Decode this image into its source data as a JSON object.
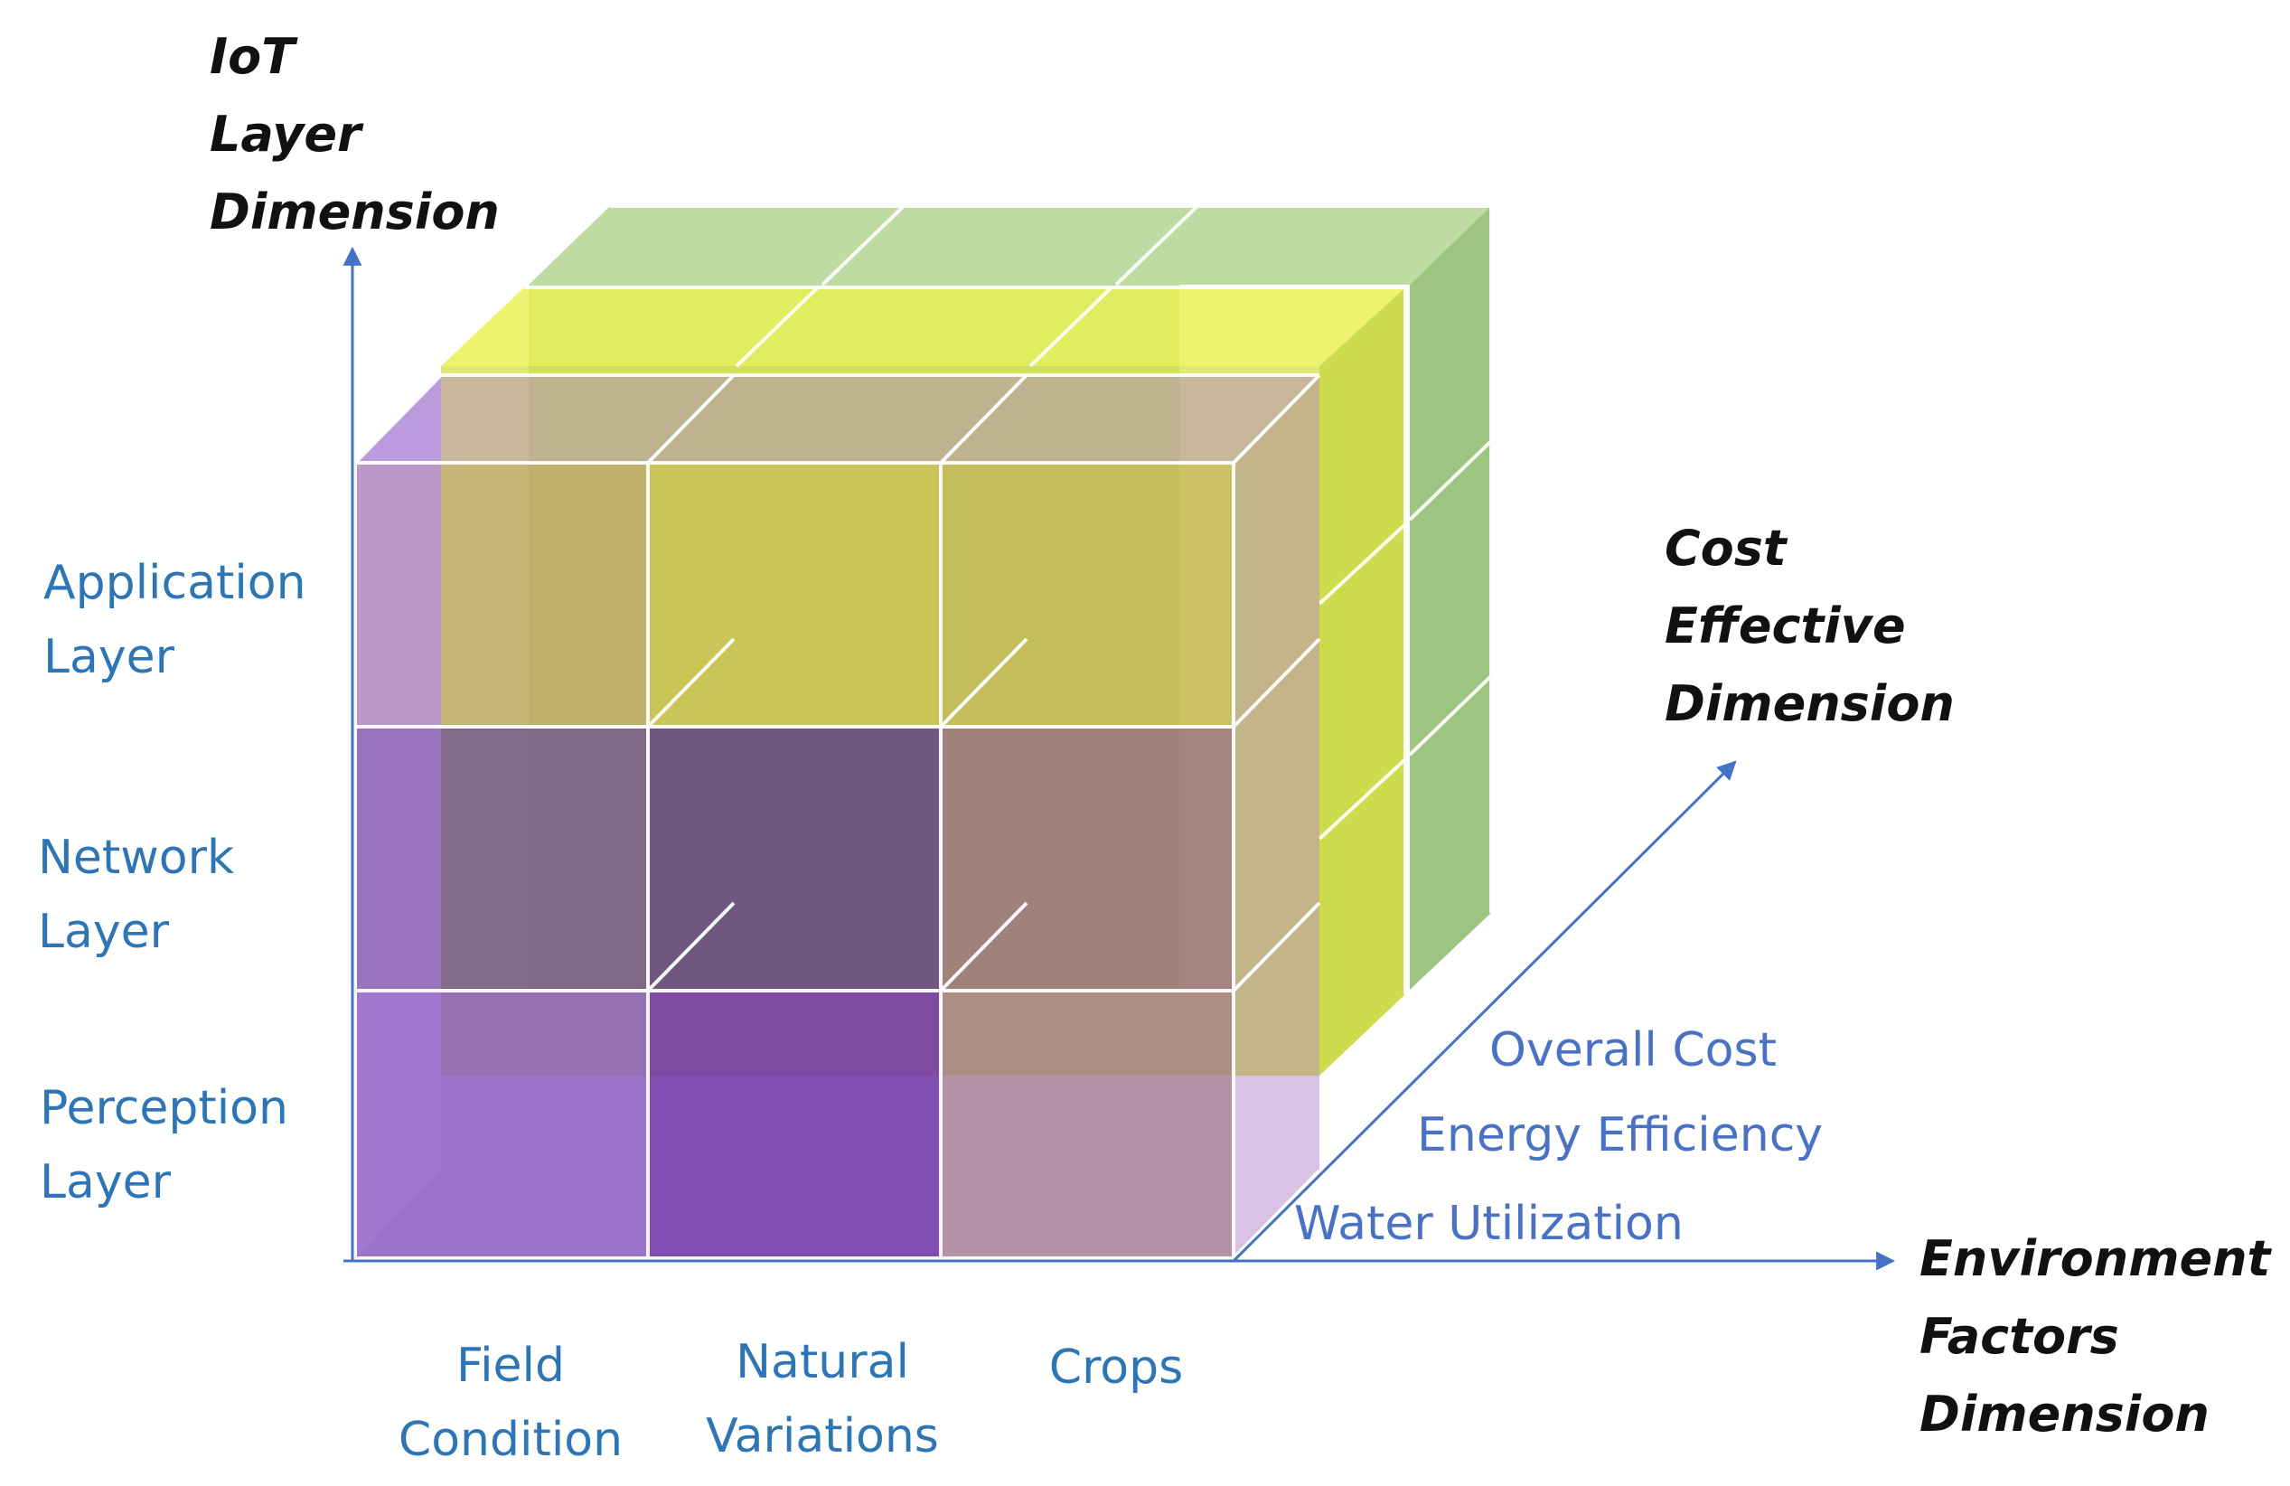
{
  "diagram": {
    "iot_axis": {
      "title_lines": [
        "IoT",
        "Layer",
        "Dimension"
      ],
      "levels": [
        {
          "lines": [
            "Application",
            "Layer"
          ]
        },
        {
          "lines": [
            "Network",
            "Layer"
          ]
        },
        {
          "lines": [
            "Perception",
            "Layer"
          ]
        }
      ]
    },
    "environment_axis": {
      "title_lines": [
        "Environment",
        "Factors",
        "Dimension"
      ],
      "categories": [
        {
          "lines": [
            "Field",
            "Condition"
          ]
        },
        {
          "lines": [
            "Natural",
            "Variations"
          ]
        },
        {
          "lines": [
            "Crops"
          ]
        }
      ]
    },
    "cost_axis": {
      "title_lines": [
        "Cost",
        "Effective",
        "Dimension"
      ],
      "categories": [
        "Overall Cost",
        "Energy Efficiency",
        "Water Utilization"
      ]
    },
    "colors": {
      "axis_line": "#4472c4",
      "layer_title": "#111111",
      "category_label": "#2e75b6",
      "cost_label": "#4a72c4",
      "slab_front": "#8e55c8",
      "slab_middle": "#d6e23a",
      "slab_back": "#8fbf6a",
      "grid_line": "#ffffff"
    }
  }
}
